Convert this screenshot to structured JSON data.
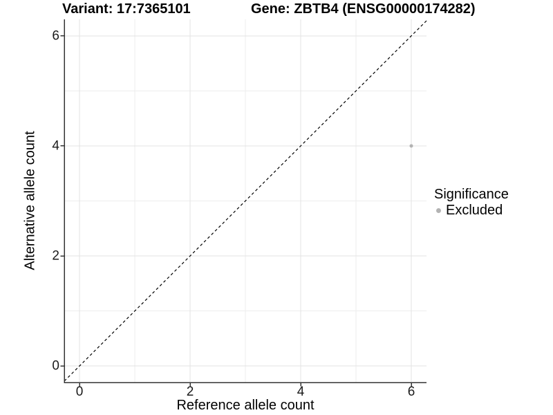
{
  "figure": {
    "titles": {
      "variant": "Variant: 17:7365101",
      "gene": "Gene: ZBTB4 (ENSG00000174282)"
    }
  },
  "axes": {
    "x": {
      "label": "Reference allele count",
      "tick_values": [
        0,
        2,
        4,
        6
      ],
      "tick_labels": [
        "0",
        "2",
        "4",
        "6"
      ]
    },
    "y": {
      "label": "Alternative allele count",
      "tick_values": [
        0,
        2,
        4,
        6
      ],
      "tick_labels": [
        "0",
        "2",
        "4",
        "6"
      ]
    }
  },
  "legend": {
    "title": "Significance",
    "items": [
      {
        "label": "Excluded",
        "color": "#b3b3b3"
      }
    ]
  },
  "chart_data": {
    "type": "scatter",
    "title_left": "Variant: 17:7365101",
    "title_right": "Gene: ZBTB4 (ENSG00000174282)",
    "xlabel": "Reference allele count",
    "ylabel": "Alternative allele count",
    "xlim": [
      -0.275,
      6.275
    ],
    "ylim": [
      -0.3,
      6.3
    ],
    "grid": "on",
    "grid_major": [
      0,
      2,
      4,
      6
    ],
    "grid_minor": [
      1,
      3,
      5
    ],
    "legend_position": "right",
    "series": [
      {
        "name": "Excluded",
        "color": "#b3b3b3",
        "points": [
          [
            6,
            4
          ]
        ],
        "marker_radius": 2.5
      }
    ],
    "reference_line": {
      "type": "identity",
      "slope": 1,
      "intercept": 0,
      "style": "dashed",
      "color": "#000000"
    }
  },
  "style": {
    "grid_major_color": "#e3e3e3",
    "grid_minor_color": "#ededed",
    "axis_color": "#333333",
    "text_color": "#000000"
  }
}
